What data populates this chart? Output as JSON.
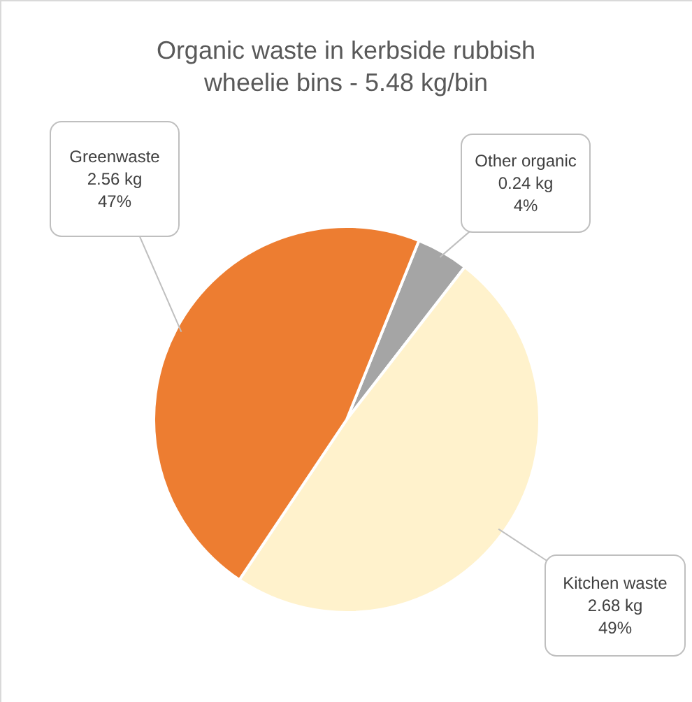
{
  "chart_data": {
    "type": "pie",
    "title": "Organic waste in kerbside rubbish\nwheelie bins  - 5.48 kg/bin",
    "categories": [
      "Other organic",
      "Kitchen waste",
      "Greenwaste"
    ],
    "values": [
      0.24,
      2.68,
      2.56
    ],
    "colors": [
      "#a5a5a5",
      "#fff2cc",
      "#ed7d31"
    ],
    "value_labels": [
      "0.24 kg\n4%",
      "2.68 kg\n49%",
      "2.56 kg\n47%"
    ]
  }
}
